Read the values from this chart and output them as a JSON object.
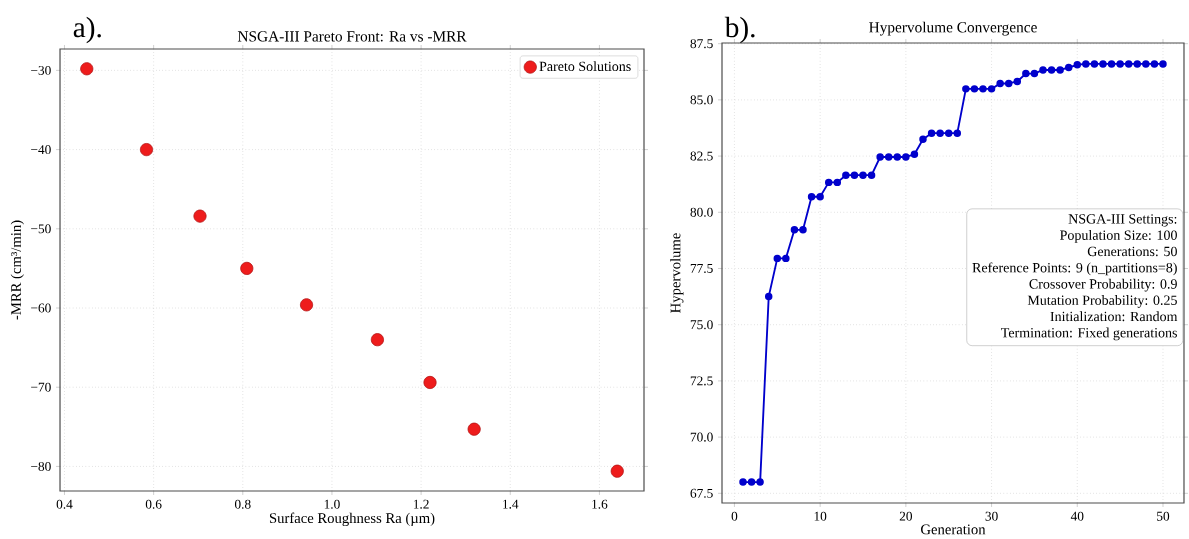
{
  "chart_data": [
    {
      "type": "scatter",
      "title": "NSGA-III Pareto Front: Ra vs -MRR",
      "xlabel": "Surface Roughness Ra (µm)",
      "ylabel": "-MRR (cm³/min)",
      "annotations": [
        "a)."
      ],
      "series": [
        {
          "name": "Pareto Solutions",
          "color": "#ee1c1c",
          "x": [
            0.45,
            0.584,
            0.704,
            0.809,
            0.943,
            1.102,
            1.22,
            1.319,
            1.64
          ],
          "values": [
            -29.8,
            -40.0,
            -48.4,
            -55.0,
            -59.6,
            -64.0,
            -69.4,
            -75.3,
            -80.6
          ]
        }
      ],
      "xlim": [
        0.39,
        1.7
      ],
      "ylim": [
        -83.1,
        -27.3
      ],
      "xticks": [
        {
          "value": 0.4,
          "label": "0.4"
        },
        {
          "value": 0.6,
          "label": "0.6"
        },
        {
          "value": 0.8,
          "label": "0.8"
        },
        {
          "value": 1.0,
          "label": "1.0"
        },
        {
          "value": 1.2,
          "label": "1.2"
        },
        {
          "value": 1.4,
          "label": "1.4"
        },
        {
          "value": 1.6,
          "label": "1.6"
        }
      ],
      "yticks": [
        {
          "value": -80,
          "label": "−80"
        },
        {
          "value": -70,
          "label": "−70"
        },
        {
          "value": -60,
          "label": "−60"
        },
        {
          "value": -50,
          "label": "−50"
        },
        {
          "value": -40,
          "label": "−40"
        },
        {
          "value": -30,
          "label": "−30"
        }
      ],
      "grid": true,
      "legend": "top right",
      "marker": "circle"
    },
    {
      "type": "line",
      "title": "Hypervolume Convergence",
      "xlabel": "Generation",
      "ylabel": "Hypervolume",
      "annotations": [
        "b).",
        "NSGA-III Settings:",
        "Population Size: 100",
        "Generations: 50",
        "Reference Points: 9 (n_partitions=8)",
        "Crossover Probability: 0.9",
        "Mutation Probability: 0.25",
        "Initialization: Random",
        "Termination: Fixed generations"
      ],
      "x": [
        1,
        2,
        3,
        4,
        5,
        6,
        7,
        8,
        9,
        10,
        11,
        12,
        13,
        14,
        15,
        16,
        17,
        18,
        19,
        20,
        21,
        22,
        23,
        24,
        25,
        26,
        27,
        28,
        29,
        30,
        31,
        32,
        33,
        34,
        35,
        36,
        37,
        38,
        39,
        40,
        41,
        42,
        43,
        44,
        45,
        46,
        47,
        48,
        49,
        50
      ],
      "series": [
        {
          "color": "#0000cc",
          "values": [
            68.0,
            68.0,
            68.0,
            76.25,
            77.95,
            77.95,
            79.22,
            79.22,
            80.69,
            80.69,
            81.33,
            81.33,
            81.65,
            81.65,
            81.65,
            81.65,
            82.46,
            82.46,
            82.46,
            82.46,
            82.58,
            83.25,
            83.52,
            83.52,
            83.52,
            83.52,
            85.49,
            85.49,
            85.49,
            85.49,
            85.73,
            85.73,
            85.82,
            86.17,
            86.17,
            86.33,
            86.33,
            86.33,
            86.44,
            86.56,
            86.6,
            86.6,
            86.6,
            86.6,
            86.6,
            86.6,
            86.6,
            86.6,
            86.6,
            86.6
          ]
        }
      ],
      "xlim": [
        -1.45,
        52.45
      ],
      "ylim": [
        67.07,
        87.53
      ],
      "xticks": [
        0,
        10,
        20,
        30,
        40,
        50
      ],
      "yticks": [
        {
          "value": 67.5,
          "label": "67.5"
        },
        {
          "value": 70.0,
          "label": "70.0"
        },
        {
          "value": 72.5,
          "label": "72.5"
        },
        {
          "value": 75.0,
          "label": "75.0"
        },
        {
          "value": 77.5,
          "label": "77.5"
        },
        {
          "value": 80.0,
          "label": "80.0"
        },
        {
          "value": 82.5,
          "label": "82.5"
        },
        {
          "value": 85.0,
          "label": "85.0"
        },
        {
          "value": 87.5,
          "label": "87.5"
        }
      ],
      "grid": true,
      "marker": "circle",
      "line_style": "solid"
    }
  ]
}
